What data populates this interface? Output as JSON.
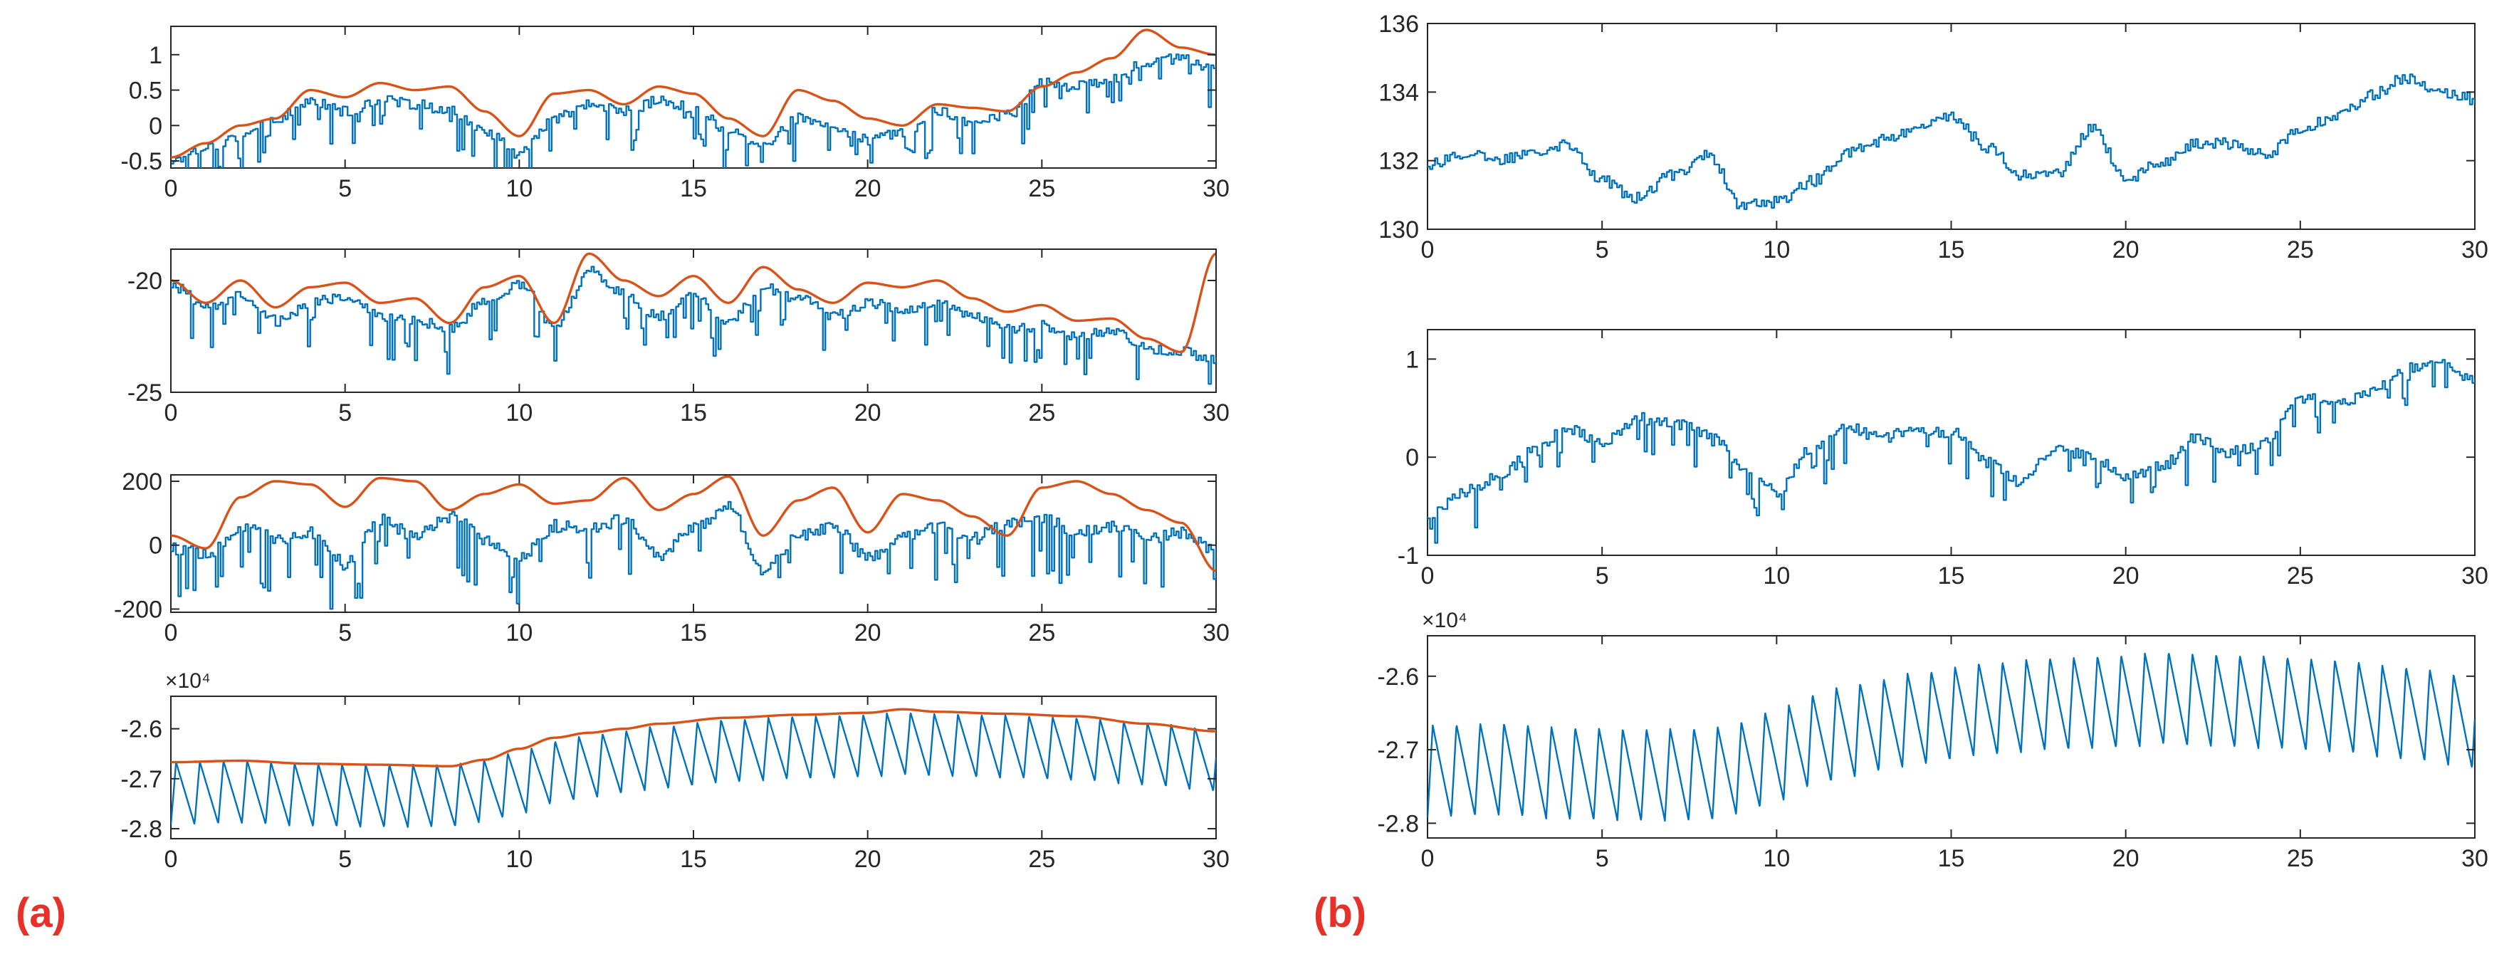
{
  "panel_labels": [
    "(a)",
    "(b)"
  ],
  "colors": {
    "signal": "#0072BD",
    "envelope": "#D95319",
    "axis": "#262626",
    "panel_label": "#E8302A"
  },
  "chart_data": [
    {
      "id": "a1",
      "type": "line",
      "panel": "(a)",
      "xlim": [
        0,
        30
      ],
      "ylim": [
        -0.6,
        1.4
      ],
      "xticks": [
        0,
        5,
        10,
        15,
        20,
        25,
        30
      ],
      "yticks": [
        -0.5,
        0,
        0.5,
        1
      ],
      "ytick_labels": [
        "-0.5",
        "0",
        "0.5",
        "1"
      ],
      "exponent": "",
      "series": [
        {
          "name": "signal",
          "style": "step",
          "noise": 0.15,
          "dips": 0.55,
          "depth": 0.45,
          "x": [
            0,
            1,
            2,
            3,
            4,
            5,
            6,
            7,
            8,
            9,
            10,
            11,
            12,
            13,
            14,
            15,
            16,
            17,
            18,
            19,
            20,
            21,
            22,
            23,
            24,
            25,
            26,
            27,
            28,
            29,
            30
          ],
          "y": [
            -0.5,
            -0.3,
            -0.15,
            0.1,
            0.35,
            0.2,
            0.35,
            0.3,
            0.2,
            -0.1,
            -0.4,
            0.1,
            0.3,
            0.2,
            0.35,
            0.25,
            -0.1,
            -0.25,
            0.1,
            -0.05,
            -0.2,
            -0.1,
            0.2,
            0.05,
            0.15,
            0.6,
            0.55,
            0.65,
            0.9,
            0.95,
            0.8
          ]
        },
        {
          "name": "envelope",
          "style": "smooth",
          "x": [
            0,
            1,
            2,
            3,
            4,
            5,
            6,
            7,
            8,
            9,
            10,
            11,
            12,
            13,
            14,
            15,
            16,
            17,
            18,
            19,
            20,
            21,
            22,
            23,
            24,
            25,
            26,
            27,
            28,
            29,
            30
          ],
          "y": [
            -0.45,
            -0.25,
            0.0,
            0.1,
            0.5,
            0.4,
            0.6,
            0.5,
            0.55,
            0.2,
            -0.15,
            0.45,
            0.5,
            0.3,
            0.55,
            0.45,
            0.1,
            -0.15,
            0.5,
            0.35,
            0.1,
            0.0,
            0.3,
            0.25,
            0.2,
            0.55,
            0.75,
            0.95,
            1.35,
            1.1,
            1.0
          ]
        }
      ]
    },
    {
      "id": "a2",
      "type": "line",
      "panel": "(a)",
      "xlim": [
        0,
        30
      ],
      "ylim": [
        -25,
        -18.6
      ],
      "xticks": [
        0,
        5,
        10,
        15,
        20,
        25,
        30
      ],
      "yticks": [
        -20,
        -25
      ],
      "ytick_labels": [
        "-20",
        "-25"
      ],
      "exponent": "",
      "series": [
        {
          "name": "signal",
          "style": "step",
          "noise": 0.5,
          "dips": 0.55,
          "depth": 1.6,
          "x": [
            0,
            1,
            2,
            3,
            4,
            5,
            6,
            7,
            8,
            9,
            10,
            11,
            12,
            13,
            14,
            15,
            16,
            17,
            18,
            19,
            20,
            21,
            22,
            23,
            24,
            25,
            26,
            27,
            28,
            29,
            30
          ],
          "y": [
            -20.2,
            -21.2,
            -20.6,
            -21.8,
            -21.0,
            -20.7,
            -21.6,
            -21.8,
            -22.2,
            -20.9,
            -20.2,
            -22.0,
            -19.6,
            -20.6,
            -21.6,
            -20.6,
            -21.8,
            -20.3,
            -20.8,
            -21.6,
            -21.0,
            -21.3,
            -20.9,
            -21.5,
            -22.2,
            -22.0,
            -22.5,
            -22.3,
            -23.0,
            -23.2,
            -23.6
          ]
        },
        {
          "name": "envelope",
          "style": "smooth",
          "x": [
            0,
            1,
            2,
            3,
            4,
            5,
            6,
            7,
            8,
            9,
            10,
            11,
            12,
            13,
            14,
            15,
            16,
            17,
            18,
            19,
            20,
            21,
            22,
            23,
            24,
            25,
            26,
            27,
            28,
            29,
            30
          ],
          "y": [
            -20.0,
            -21.0,
            -20.0,
            -21.2,
            -20.3,
            -20.1,
            -21.0,
            -20.8,
            -21.9,
            -20.3,
            -19.8,
            -21.9,
            -18.8,
            -20.0,
            -20.7,
            -19.8,
            -21.0,
            -19.4,
            -20.4,
            -21.0,
            -20.1,
            -20.3,
            -20.0,
            -20.8,
            -21.4,
            -21.1,
            -21.8,
            -21.7,
            -22.6,
            -23.2,
            -18.8
          ]
        }
      ]
    },
    {
      "id": "a3",
      "type": "line",
      "panel": "(a)",
      "xlim": [
        0,
        30
      ],
      "ylim": [
        -210,
        220
      ],
      "xticks": [
        0,
        5,
        10,
        15,
        20,
        25,
        30
      ],
      "yticks": [
        200,
        0,
        -200
      ],
      "ytick_labels": [
        "200",
        "0",
        "-200"
      ],
      "exponent": "",
      "series": [
        {
          "name": "signal",
          "style": "step",
          "noise": 40,
          "dips": 0.5,
          "depth": 150,
          "x": [
            0,
            1,
            2,
            3,
            4,
            5,
            6,
            7,
            8,
            9,
            10,
            11,
            12,
            13,
            14,
            15,
            16,
            17,
            18,
            19,
            20,
            21,
            22,
            23,
            24,
            25,
            26,
            27,
            28,
            29,
            30
          ],
          "y": [
            -10,
            -30,
            60,
            20,
            40,
            -60,
            80,
            30,
            90,
            20,
            -40,
            60,
            50,
            80,
            -30,
            50,
            120,
            -80,
            30,
            60,
            -40,
            30,
            60,
            20,
            70,
            80,
            40,
            60,
            20,
            40,
            -20
          ]
        },
        {
          "name": "envelope",
          "style": "smooth",
          "x": [
            0,
            1,
            2,
            3,
            4,
            5,
            6,
            7,
            8,
            9,
            10,
            11,
            12,
            13,
            14,
            15,
            16,
            17,
            18,
            19,
            20,
            21,
            22,
            23,
            24,
            25,
            26,
            27,
            28,
            29,
            30
          ],
          "y": [
            30,
            -10,
            150,
            200,
            190,
            120,
            210,
            200,
            110,
            160,
            190,
            130,
            140,
            210,
            110,
            160,
            215,
            30,
            140,
            180,
            40,
            160,
            140,
            90,
            30,
            180,
            200,
            160,
            110,
            70,
            -80
          ]
        }
      ]
    },
    {
      "id": "a4",
      "type": "line",
      "panel": "(a)",
      "xlim": [
        0,
        30
      ],
      "ylim": [
        -2.82,
        -2.535
      ],
      "xticks": [
        0,
        5,
        10,
        15,
        20,
        25,
        30
      ],
      "yticks": [
        -2.6,
        -2.7,
        -2.8
      ],
      "ytick_labels": [
        "-2.6",
        "-2.7",
        "-2.8"
      ],
      "exponent": "×10⁴",
      "series": [
        {
          "name": "signal",
          "style": "sawtooth",
          "period": 0.68,
          "amp": 0.125,
          "x": [
            0,
            2,
            4,
            6,
            8,
            9,
            10,
            11,
            12,
            13,
            14,
            16,
            18,
            20,
            21,
            22,
            24,
            26,
            28,
            30
          ],
          "y": [
            -2.667,
            -2.664,
            -2.67,
            -2.672,
            -2.671,
            -2.662,
            -2.645,
            -2.625,
            -2.613,
            -2.604,
            -2.595,
            -2.582,
            -2.575,
            -2.572,
            -2.567,
            -2.57,
            -2.573,
            -2.578,
            -2.588,
            -2.6
          ]
        },
        {
          "name": "envelope",
          "style": "smooth",
          "x": [
            0,
            2,
            4,
            6,
            8,
            9,
            10,
            11,
            12,
            13,
            14,
            16,
            18,
            20,
            21,
            22,
            24,
            26,
            28,
            30
          ],
          "y": [
            -2.667,
            -2.664,
            -2.67,
            -2.672,
            -2.675,
            -2.662,
            -2.64,
            -2.618,
            -2.608,
            -2.6,
            -2.59,
            -2.578,
            -2.572,
            -2.568,
            -2.561,
            -2.566,
            -2.57,
            -2.575,
            -2.59,
            -2.605
          ]
        }
      ]
    },
    {
      "id": "b1",
      "type": "line",
      "panel": "(b)",
      "xlim": [
        0,
        30
      ],
      "ylim": [
        130,
        136
      ],
      "xticks": [
        0,
        5,
        10,
        15,
        20,
        25,
        30
      ],
      "yticks": [
        130,
        132,
        134,
        136
      ],
      "ytick_labels": [
        "130",
        "132",
        "134",
        "136"
      ],
      "exponent": "",
      "series": [
        {
          "name": "signal",
          "style": "step",
          "noise": 0.35,
          "dips": 0.0,
          "depth": 0,
          "x": [
            0,
            1,
            2,
            3,
            4,
            5,
            6,
            7,
            8,
            9,
            10,
            11,
            12,
            13,
            14,
            15,
            16,
            17,
            18,
            19,
            20,
            21,
            22,
            23,
            24,
            25,
            26,
            27,
            28,
            29,
            30
          ],
          "y": [
            131.9,
            132.2,
            132.0,
            132.3,
            132.5,
            131.4,
            130.9,
            131.6,
            132.2,
            130.7,
            130.8,
            131.4,
            132.2,
            132.6,
            132.9,
            133.3,
            132.4,
            131.6,
            131.6,
            132.9,
            131.5,
            131.9,
            132.5,
            132.5,
            132.2,
            132.9,
            133.3,
            133.9,
            134.4,
            134.0,
            133.8
          ]
        }
      ]
    },
    {
      "id": "b2",
      "type": "line",
      "panel": "(b)",
      "xlim": [
        0,
        30
      ],
      "ylim": [
        -1,
        1.3
      ],
      "xticks": [
        0,
        5,
        10,
        15,
        20,
        25,
        30
      ],
      "yticks": [
        1,
        0,
        -1
      ],
      "ytick_labels": [
        "1",
        "0",
        "-1"
      ],
      "exponent": "",
      "series": [
        {
          "name": "signal",
          "style": "step",
          "noise": 0.12,
          "dips": 0.5,
          "depth": 0.35,
          "x": [
            0,
            1,
            2,
            3,
            4,
            5,
            6,
            7,
            8,
            9,
            10,
            11,
            12,
            13,
            14,
            15,
            16,
            17,
            18,
            19,
            20,
            21,
            22,
            23,
            24,
            25,
            26,
            27,
            28,
            29,
            30
          ],
          "y": [
            -0.6,
            -0.35,
            -0.2,
            0.05,
            0.3,
            0.15,
            0.4,
            0.35,
            0.25,
            -0.1,
            -0.35,
            0.1,
            0.3,
            0.2,
            0.3,
            0.25,
            -0.05,
            -0.25,
            0.1,
            0.0,
            -0.2,
            -0.1,
            0.2,
            0.05,
            0.15,
            0.6,
            0.55,
            0.65,
            0.9,
            0.95,
            0.8
          ]
        }
      ]
    },
    {
      "id": "b3",
      "type": "line",
      "panel": "(b)",
      "xlim": [
        0,
        30
      ],
      "ylim": [
        -2.82,
        -2.545
      ],
      "xticks": [
        0,
        5,
        10,
        15,
        20,
        25,
        30
      ],
      "yticks": [
        -2.6,
        -2.7,
        -2.8
      ],
      "ytick_labels": [
        "-2.6",
        "-2.7",
        "-2.8"
      ],
      "exponent": "×10⁴",
      "series": [
        {
          "name": "signal",
          "style": "sawtooth",
          "period": 0.68,
          "amp": 0.125,
          "x": [
            0,
            2,
            4,
            6,
            8,
            9,
            10,
            11,
            12,
            13,
            14,
            16,
            18,
            20,
            21,
            22,
            24,
            26,
            28,
            30
          ],
          "y": [
            -2.667,
            -2.664,
            -2.67,
            -2.672,
            -2.671,
            -2.662,
            -2.645,
            -2.625,
            -2.613,
            -2.604,
            -2.595,
            -2.582,
            -2.575,
            -2.572,
            -2.567,
            -2.57,
            -2.573,
            -2.578,
            -2.588,
            -2.6
          ]
        }
      ]
    }
  ]
}
